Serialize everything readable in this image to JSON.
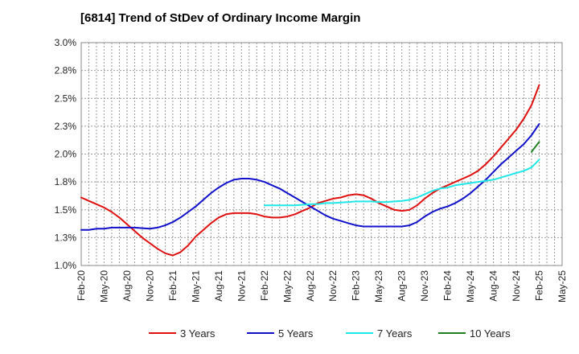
{
  "chart_data": {
    "type": "line",
    "title": "[6814]  Trend of StDev of Ordinary Income Margin",
    "xlabel": "",
    "ylabel": "",
    "x_ticks": [
      "Feb-20",
      "May-20",
      "Aug-20",
      "Nov-20",
      "Feb-21",
      "May-21",
      "Aug-21",
      "Nov-21",
      "Feb-22",
      "May-22",
      "Aug-22",
      "Nov-22",
      "Feb-23",
      "May-23",
      "Aug-23",
      "Nov-23",
      "Feb-24",
      "May-24",
      "Aug-24",
      "Nov-24",
      "Feb-25",
      "May-25"
    ],
    "y_ticks": [
      "1.0%",
      "1.3%",
      "1.5%",
      "1.8%",
      "2.0%",
      "2.3%",
      "2.5%",
      "2.8%",
      "3.0%"
    ],
    "ylim": [
      1.0,
      3.0
    ],
    "grid": true,
    "legend_position": "bottom",
    "series": [
      {
        "name": "3 Years",
        "color": "#e01010",
        "x": [
          "Feb-20",
          "Mar-20",
          "Apr-20",
          "May-20",
          "Jun-20",
          "Jul-20",
          "Aug-20",
          "Sep-20",
          "Oct-20",
          "Nov-20",
          "Dec-20",
          "Jan-21",
          "Feb-21",
          "Mar-21",
          "Apr-21",
          "May-21",
          "Jun-21",
          "Jul-21",
          "Aug-21",
          "Sep-21",
          "Oct-21",
          "Nov-21",
          "Dec-21",
          "Jan-22",
          "Feb-22",
          "Mar-22",
          "Apr-22",
          "May-22",
          "Jun-22",
          "Jul-22",
          "Aug-22",
          "Sep-22",
          "Oct-22",
          "Nov-22",
          "Dec-22",
          "Jan-23",
          "Feb-23",
          "Mar-23",
          "Apr-23",
          "May-23",
          "Jun-23",
          "Jul-23",
          "Aug-23",
          "Sep-23",
          "Oct-23",
          "Nov-23",
          "Dec-23",
          "Jan-24",
          "Feb-24",
          "Mar-24",
          "Apr-24",
          "May-24",
          "Jun-24",
          "Jul-24",
          "Aug-24",
          "Sep-24",
          "Oct-24",
          "Nov-24",
          "Dec-24",
          "Jan-25",
          "Feb-25"
        ],
        "values": [
          1.61,
          1.58,
          1.55,
          1.52,
          1.48,
          1.43,
          1.37,
          1.31,
          1.25,
          1.2,
          1.15,
          1.11,
          1.09,
          1.12,
          1.18,
          1.26,
          1.32,
          1.38,
          1.43,
          1.46,
          1.47,
          1.47,
          1.47,
          1.46,
          1.44,
          1.43,
          1.43,
          1.44,
          1.46,
          1.49,
          1.52,
          1.56,
          1.58,
          1.6,
          1.61,
          1.63,
          1.64,
          1.63,
          1.6,
          1.56,
          1.53,
          1.5,
          1.49,
          1.5,
          1.54,
          1.6,
          1.65,
          1.69,
          1.72,
          1.75,
          1.78,
          1.81,
          1.85,
          1.91,
          1.98,
          2.06,
          2.14,
          2.22,
          2.32,
          2.44,
          2.62
        ]
      },
      {
        "name": "5 Years",
        "color": "#1010cc",
        "x": [
          "Feb-20",
          "Mar-20",
          "Apr-20",
          "May-20",
          "Jun-20",
          "Jul-20",
          "Aug-20",
          "Sep-20",
          "Oct-20",
          "Nov-20",
          "Dec-20",
          "Jan-21",
          "Feb-21",
          "Mar-21",
          "Apr-21",
          "May-21",
          "Jun-21",
          "Jul-21",
          "Aug-21",
          "Sep-21",
          "Oct-21",
          "Nov-21",
          "Dec-21",
          "Jan-22",
          "Feb-22",
          "Mar-22",
          "Apr-22",
          "May-22",
          "Jun-22",
          "Jul-22",
          "Aug-22",
          "Sep-22",
          "Oct-22",
          "Nov-22",
          "Dec-22",
          "Jan-23",
          "Feb-23",
          "Mar-23",
          "Apr-23",
          "May-23",
          "Jun-23",
          "Jul-23",
          "Aug-23",
          "Sep-23",
          "Oct-23",
          "Nov-23",
          "Dec-23",
          "Jan-24",
          "Feb-24",
          "Mar-24",
          "Apr-24",
          "May-24",
          "Jun-24",
          "Jul-24",
          "Aug-24",
          "Sep-24",
          "Oct-24",
          "Nov-24",
          "Dec-24",
          "Jan-25",
          "Feb-25"
        ],
        "values": [
          1.32,
          1.32,
          1.33,
          1.33,
          1.34,
          1.34,
          1.34,
          1.34,
          1.335,
          1.33,
          1.34,
          1.36,
          1.39,
          1.43,
          1.48,
          1.53,
          1.59,
          1.65,
          1.7,
          1.74,
          1.77,
          1.78,
          1.78,
          1.77,
          1.75,
          1.72,
          1.69,
          1.65,
          1.61,
          1.57,
          1.53,
          1.49,
          1.45,
          1.42,
          1.4,
          1.38,
          1.36,
          1.35,
          1.35,
          1.35,
          1.35,
          1.35,
          1.35,
          1.36,
          1.39,
          1.44,
          1.48,
          1.51,
          1.53,
          1.56,
          1.6,
          1.65,
          1.71,
          1.77,
          1.84,
          1.91,
          1.97,
          2.03,
          2.09,
          2.17,
          2.27
        ]
      },
      {
        "name": "7 Years",
        "color": "#20e8e8",
        "x": [
          "Feb-22",
          "Mar-22",
          "Apr-22",
          "May-22",
          "Jun-22",
          "Jul-22",
          "Aug-22",
          "Sep-22",
          "Oct-22",
          "Nov-22",
          "Dec-22",
          "Jan-23",
          "Feb-23",
          "Mar-23",
          "Apr-23",
          "May-23",
          "Jun-23",
          "Jul-23",
          "Aug-23",
          "Sep-23",
          "Oct-23",
          "Nov-23",
          "Dec-23",
          "Jan-24",
          "Feb-24",
          "Mar-24",
          "Apr-24",
          "May-24",
          "Jun-24",
          "Jul-24",
          "Aug-24",
          "Sep-24",
          "Oct-24",
          "Nov-24",
          "Dec-24",
          "Jan-25",
          "Feb-25"
        ],
        "values": [
          1.54,
          1.54,
          1.54,
          1.54,
          1.54,
          1.545,
          1.55,
          1.55,
          1.56,
          1.56,
          1.565,
          1.57,
          1.575,
          1.575,
          1.575,
          1.57,
          1.57,
          1.575,
          1.58,
          1.59,
          1.61,
          1.64,
          1.67,
          1.69,
          1.7,
          1.72,
          1.73,
          1.74,
          1.75,
          1.76,
          1.77,
          1.79,
          1.81,
          1.83,
          1.85,
          1.88,
          1.95
        ]
      },
      {
        "name": "10 Years",
        "color": "#208020",
        "x": [
          "Jan-25",
          "Feb-25"
        ],
        "values": [
          2.02,
          2.11
        ]
      }
    ]
  }
}
